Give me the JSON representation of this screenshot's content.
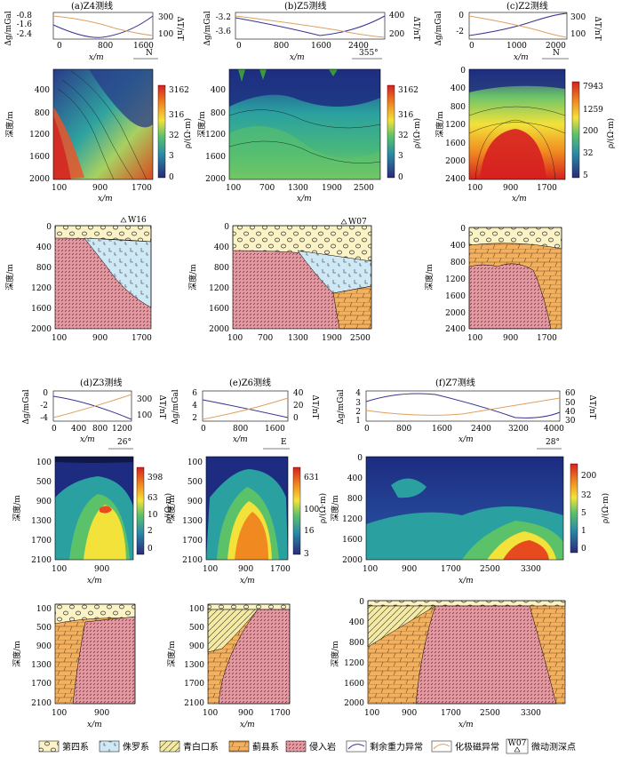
{
  "units": {
    "gravity": "Δg/mGal",
    "magnetic": "ΔT/nT",
    "depth": "深度/m",
    "distance": "x/m",
    "resistivity": "ρ/(Ω·m)"
  },
  "legend": {
    "items": [
      {
        "key": "quaternary",
        "label": "第四系"
      },
      {
        "key": "jurassic",
        "label": "侏罗系"
      },
      {
        "key": "qingbaikou",
        "label": "青白口系"
      },
      {
        "key": "jixian",
        "label": "蓟县系"
      },
      {
        "key": "intrusive",
        "label": "侵入岩"
      },
      {
        "key": "gravity",
        "label": "剩余重力异常"
      },
      {
        "key": "magnetic",
        "label": "化极磁异常"
      },
      {
        "key": "station",
        "label": "微动测深点",
        "symbol_text": "W07"
      }
    ]
  },
  "colors": {
    "gravity_line": "#3a3393",
    "magnetic_line": "#e0a060",
    "quaternary": "#fbf3c6",
    "jurassic": "#cfe8f5",
    "qingbaikou": "#f5eaa3",
    "jixian": "#f3b160",
    "intrusive": "#e39aa2"
  },
  "panels": [
    {
      "title": "(a)Z4测线",
      "orientation": "N",
      "g_ticks": [
        "-0.8",
        "-1.6",
        "-2.4"
      ],
      "t_ticks": [
        "300",
        "100"
      ],
      "x_ticks_top": [
        "0",
        "800",
        "1600"
      ],
      "depth_ticks": [
        "400",
        "800",
        "1200",
        "1600",
        "2000"
      ],
      "x_ticks_res": [
        "100",
        "900",
        "1700"
      ],
      "cbar_ticks": [
        "3162",
        "316",
        "32",
        "3",
        "0"
      ],
      "geo_depth_ticks": [
        "0",
        "400",
        "800",
        "1200",
        "1600",
        "2000"
      ],
      "geo_x_ticks": [
        "100",
        "900",
        "1700"
      ],
      "station": "W16"
    },
    {
      "title": "(b)Z5测线",
      "orientation": "355°",
      "g_ticks": [
        "-3.2",
        "-3.6"
      ],
      "t_ticks": [
        "400",
        "200"
      ],
      "x_ticks_top": [
        "0",
        "800",
        "1600",
        "2400"
      ],
      "depth_ticks": [
        "400",
        "800",
        "1200",
        "1600",
        "2000"
      ],
      "x_ticks_res": [
        "100",
        "700",
        "1300",
        "1900",
        "2500"
      ],
      "cbar_ticks": [
        "3162",
        "316",
        "32",
        "3",
        "0"
      ],
      "geo_depth_ticks": [
        "0",
        "400",
        "800",
        "1200",
        "1600",
        "2000"
      ],
      "geo_x_ticks": [
        "100",
        "700",
        "1300",
        "1900",
        "2500"
      ],
      "station": "W07"
    },
    {
      "title": "(c)Z2测线",
      "orientation": "N",
      "g_ticks": [
        "0",
        "-2"
      ],
      "t_ticks": [
        "300",
        "100"
      ],
      "x_ticks_top": [
        "0",
        "1000",
        "2000"
      ],
      "depth_ticks": [
        "0",
        "400",
        "800",
        "1200",
        "1600",
        "2000",
        "2400"
      ],
      "x_ticks_res": [
        "100",
        "900",
        "1700"
      ],
      "cbar_ticks": [
        "7943",
        "1259",
        "200",
        "32",
        "5"
      ],
      "geo_depth_ticks": [
        "0",
        "400",
        "800",
        "1200",
        "1600",
        "2000",
        "2400"
      ],
      "geo_x_ticks": [
        "100",
        "900",
        "1700"
      ]
    },
    {
      "title": "(d)Z3测线",
      "orientation": "26°",
      "g_ticks": [
        "0",
        "-2",
        "-4"
      ],
      "t_ticks": [
        "300",
        "100"
      ],
      "x_ticks_top": [
        "0",
        "400",
        "800",
        "1200"
      ],
      "depth_ticks": [
        "100",
        "500",
        "900",
        "1300",
        "1700",
        "2100"
      ],
      "x_ticks_res": [
        "100",
        "900"
      ],
      "cbar_ticks": [
        "398",
        "63",
        "10",
        "2",
        "0"
      ],
      "geo_depth_ticks": [
        "100",
        "500",
        "900",
        "1300",
        "1700",
        "2100"
      ],
      "geo_x_ticks": [
        "100",
        "900"
      ]
    },
    {
      "title": "(e)Z6测线",
      "orientation": "E",
      "g_ticks": [
        "6",
        "4",
        "2"
      ],
      "t_ticks": [
        "40",
        "20",
        "0"
      ],
      "x_ticks_top": [
        "0",
        "800",
        "1600"
      ],
      "depth_ticks": [
        "100",
        "500",
        "900",
        "1300",
        "1700",
        "2100"
      ],
      "x_ticks_res": [
        "100",
        "900",
        "1700"
      ],
      "cbar_ticks": [
        "631",
        "100",
        "16",
        "3"
      ],
      "geo_depth_ticks": [
        "100",
        "500",
        "900",
        "1300",
        "1700",
        "2100"
      ],
      "geo_x_ticks": [
        "100",
        "900",
        "1700"
      ]
    },
    {
      "title": "(f)Z7测线",
      "orientation": "28°",
      "g_ticks": [
        "4",
        "3",
        "2",
        "1"
      ],
      "t_ticks": [
        "60",
        "50",
        "40",
        "30"
      ],
      "x_ticks_top": [
        "0",
        "800",
        "1600",
        "2400",
        "3200",
        "4000"
      ],
      "depth_ticks": [
        "0",
        "400",
        "800",
        "1200",
        "1600",
        "2000"
      ],
      "x_ticks_res": [
        "100",
        "900",
        "1700",
        "2500",
        "3300"
      ],
      "cbar_ticks": [
        "200",
        "32",
        "5",
        "1",
        "0"
      ],
      "geo_depth_ticks": [
        "0",
        "400",
        "800",
        "1200",
        "1600",
        "2000"
      ],
      "geo_x_ticks": [
        "100",
        "900",
        "1700",
        "2500",
        "3300"
      ]
    }
  ],
  "chart_data": [
    {
      "type": "line",
      "title": "(a)Z4测线",
      "series": [
        {
          "name": "剩余重力异常",
          "x": [
            0,
            400,
            800,
            1200,
            1600,
            2000
          ],
          "values": [
            -1.2,
            -1.9,
            -2.4,
            -2.2,
            -1.6,
            -1.0
          ]
        },
        {
          "name": "化极磁异常",
          "x": [
            0,
            400,
            800,
            1200,
            1600,
            2000
          ],
          "values": [
            120,
            150,
            200,
            250,
            300,
            330
          ]
        }
      ]
    },
    {
      "type": "line",
      "title": "(b)Z5测线",
      "series": [
        {
          "name": "剩余重力异常",
          "x": [
            0,
            800,
            1600,
            2400,
            2800
          ],
          "values": [
            -3.2,
            -3.4,
            -3.7,
            -3.4,
            -3.1
          ]
        },
        {
          "name": "化极磁异常",
          "x": [
            0,
            800,
            1600,
            2400,
            2800
          ],
          "values": [
            380,
            320,
            260,
            200,
            170
          ]
        }
      ]
    },
    {
      "type": "line",
      "title": "(c)Z2测线",
      "series": [
        {
          "name": "剩余重力异常",
          "x": [
            0,
            1000,
            2000,
            2200
          ],
          "values": [
            -2.5,
            -1.5,
            0,
            0.2
          ]
        },
        {
          "name": "化极磁异常",
          "x": [
            0,
            1000,
            2000,
            2200
          ],
          "values": [
            300,
            220,
            130,
            110
          ]
        }
      ]
    },
    {
      "type": "line",
      "title": "(d)Z3测线",
      "series": [
        {
          "name": "剩余重力异常",
          "x": [
            0,
            400,
            800,
            1200
          ],
          "values": [
            -0.5,
            -1.5,
            -3.0,
            -4.2
          ]
        },
        {
          "name": "化极磁异常",
          "x": [
            0,
            400,
            800,
            1200
          ],
          "values": [
            90,
            150,
            230,
            300
          ]
        }
      ]
    },
    {
      "type": "line",
      "title": "(e)Z6测线",
      "series": [
        {
          "name": "剩余重力异常",
          "x": [
            0,
            800,
            1600,
            2000
          ],
          "values": [
            5,
            3.8,
            2.8,
            2.6
          ]
        },
        {
          "name": "化极磁异常",
          "x": [
            0,
            800,
            1600,
            2000
          ],
          "values": [
            5,
            15,
            28,
            34
          ]
        }
      ]
    },
    {
      "type": "line",
      "title": "(f)Z7测线",
      "series": [
        {
          "name": "剩余重力异常",
          "x": [
            0,
            800,
            1600,
            2400,
            3200,
            4000
          ],
          "values": [
            3.2,
            3.6,
            3.0,
            1.8,
            1.3,
            1.6
          ]
        },
        {
          "name": "化极磁异常",
          "x": [
            0,
            800,
            1600,
            2400,
            3200,
            4000
          ],
          "values": [
            38,
            34,
            32,
            36,
            44,
            50
          ]
        }
      ]
    }
  ]
}
